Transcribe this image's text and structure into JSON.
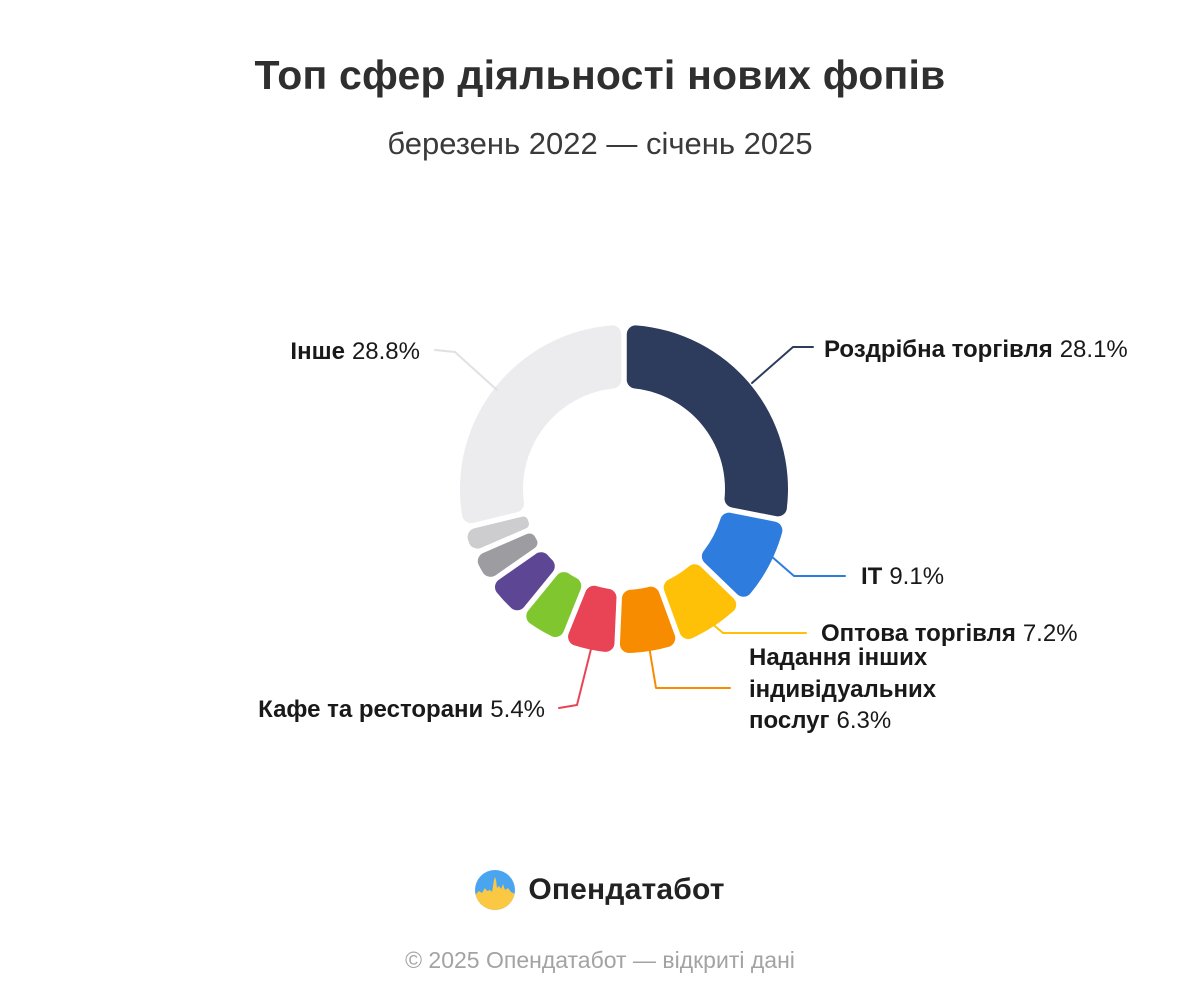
{
  "title": "Топ сфер діяльності нових фопів",
  "subtitle": "березень 2022 — січень 2025",
  "chart_data": {
    "type": "pie",
    "variant": "donut",
    "title": "Топ сфер діяльності нових фопів",
    "subtitle": "березень 2022 — січень 2025",
    "unit": "%",
    "direction": "clockwise",
    "start_angle_deg": 0,
    "inner_radius_ratio": 0.615,
    "segments": [
      {
        "label": "Роздрібна торгівля",
        "value": 28.1,
        "value_text": "28.1%",
        "color": "#2d3b5c",
        "labeled": true
      },
      {
        "label": "IT",
        "value": 9.1,
        "value_text": "9.1%",
        "color": "#2e7cde",
        "labeled": true
      },
      {
        "label": "Оптова торгівля",
        "value": 7.2,
        "value_text": "7.2%",
        "color": "#fec107",
        "labeled": true
      },
      {
        "label": "Надання інших індивідуальних послуг",
        "value": 6.3,
        "value_text": "6.3%",
        "color": "#f88c00",
        "labeled": true
      },
      {
        "label": "Кафе та ресторани",
        "value": 5.4,
        "value_text": "5.4%",
        "color": "#e84456",
        "labeled": true
      },
      {
        "label": "",
        "value": 4.8,
        "value_text": "",
        "color": "#80c62f",
        "labeled": false,
        "estimated": true
      },
      {
        "label": "",
        "value": 4.4,
        "value_text": "",
        "color": "#5d4795",
        "labeled": false,
        "estimated": true
      },
      {
        "label": "",
        "value": 3.2,
        "value_text": "",
        "color": "#9d9da1",
        "labeled": false,
        "estimated": true
      },
      {
        "label": "",
        "value": 2.7,
        "value_text": "",
        "color": "#cdcdcf",
        "labeled": false,
        "estimated": true
      },
      {
        "label": "Інше",
        "value": 28.8,
        "value_text": "28.8%",
        "color": "#ececee",
        "labeled": true
      }
    ]
  },
  "logo": {
    "text": "Опендатабот",
    "icon": "opendatabot-logo-icon",
    "icon_blue": "#4aa5f0",
    "icon_yellow": "#fbc843"
  },
  "footer": {
    "copyright": "© 2025 Опендатабот — відкриті дані"
  }
}
